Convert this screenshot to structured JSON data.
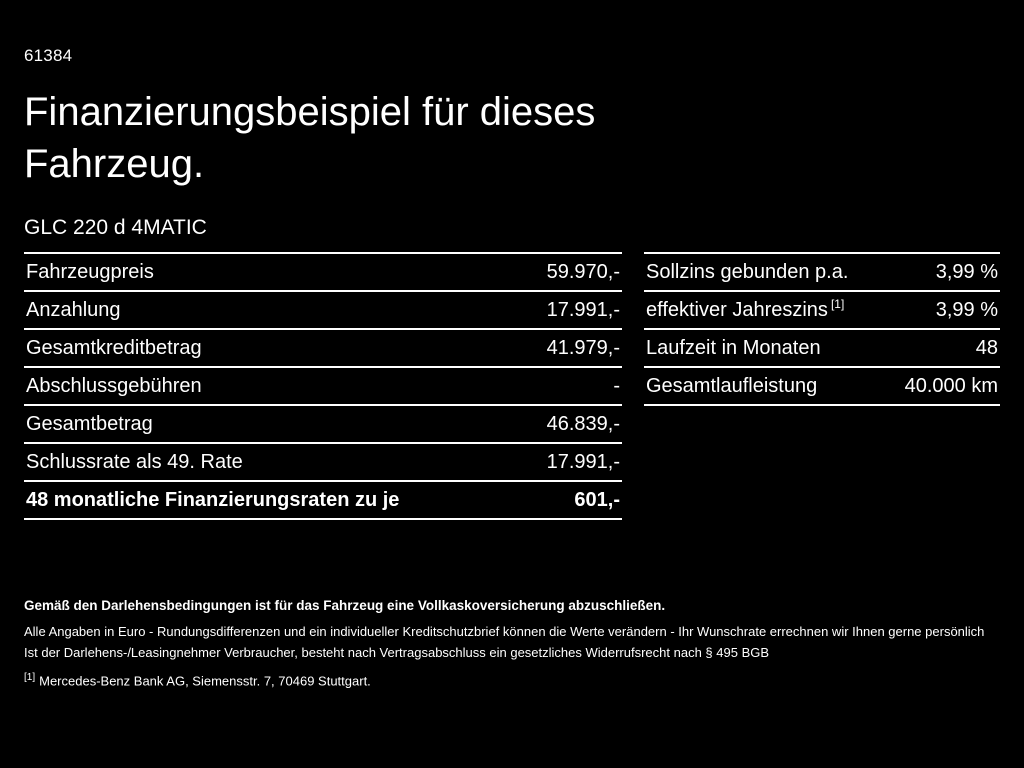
{
  "page": {
    "code": "61384",
    "title": "Finanzierungsbeispiel für dieses Fahrzeug.",
    "model": "GLC 220 d 4MATIC"
  },
  "tables": {
    "left": {
      "rows": [
        {
          "label": "Fahrzeugpreis",
          "value": "59.970,-"
        },
        {
          "label": "Anzahlung",
          "value": "17.991,-"
        },
        {
          "label": "Gesamtkreditbetrag",
          "value": "41.979,-"
        },
        {
          "label": "Abschlussgebühren",
          "value": "-"
        },
        {
          "label": "Gesamtbetrag",
          "value": "46.839,-"
        },
        {
          "label": "Schlussrate als 49. Rate",
          "value": "17.991,-"
        },
        {
          "label": "48 monatliche Finanzierungsraten zu je",
          "value": "601,-"
        }
      ]
    },
    "right": {
      "rows": [
        {
          "label": "Sollzins gebunden p.a.",
          "value": "3,99 %"
        },
        {
          "label": "effektiver Jahreszins",
          "sup": "[1]",
          "value": "3,99 %"
        },
        {
          "label": "Laufzeit in Monaten",
          "value": "48"
        },
        {
          "label": "Gesamtlaufleistung",
          "value": "40.000 km"
        }
      ]
    }
  },
  "footer": {
    "insurance_note": "Gemäß den Darlehensbedingungen ist für das Fahrzeug eine Vollkaskoversicherung abzuschließen.",
    "rounding_note": "Alle Angaben in Euro - Rundungsdifferenzen und ein individueller Kreditschutzbrief können die Werte verändern - Ihr Wunschrate errechnen wir Ihnen gerne persönlich",
    "withdrawal_note": "Ist der Darlehens-/Leasingnehmer Verbraucher, besteht nach Vertragsabschluss ein gesetzliches Widerrufsrecht nach § 495 BGB",
    "footnote_marker": "[1]",
    "footnote_text": "Mercedes-Benz Bank AG, Siemensstr. 7, 70469 Stuttgart."
  }
}
